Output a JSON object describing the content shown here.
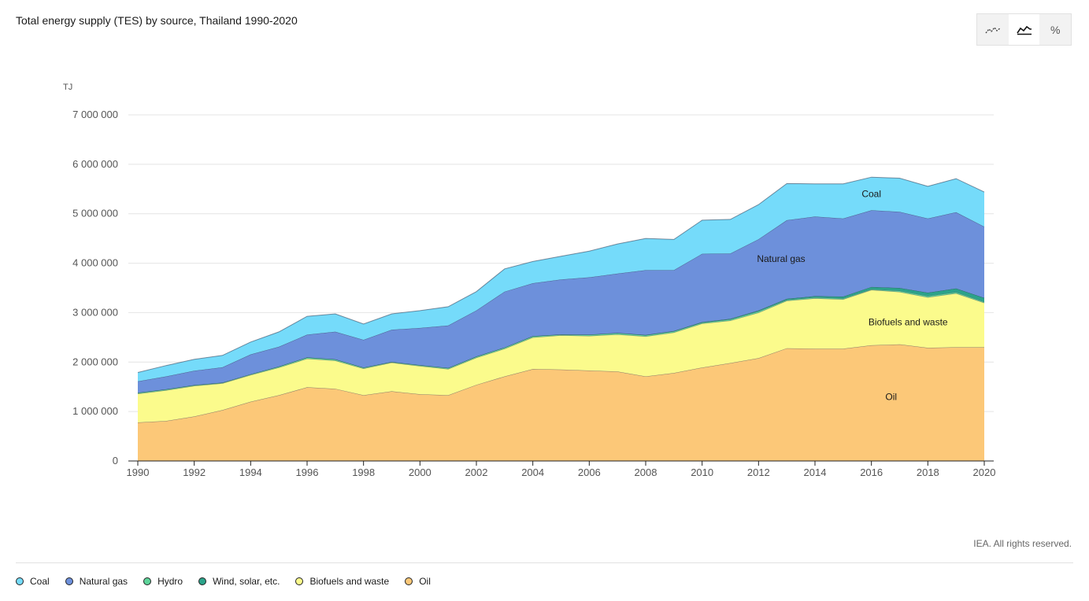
{
  "header": {
    "title": "Total energy supply (TES) by source, Thailand 1990-2020"
  },
  "view_toggle": {
    "buttons": [
      {
        "icon": "line-chart-icon",
        "glyph": "⟋",
        "active": false
      },
      {
        "icon": "area-chart-icon",
        "glyph": "◿",
        "active": true
      },
      {
        "icon": "percent-icon",
        "glyph": "%",
        "active": false
      }
    ]
  },
  "footer": {
    "credit": "IEA. All rights reserved."
  },
  "legend": [
    {
      "label": "Coal",
      "color": "#75dbfa"
    },
    {
      "label": "Natural gas",
      "color": "#6d90db"
    },
    {
      "label": "Hydro",
      "color": "#5ed49a"
    },
    {
      "label": "Wind, solar, etc.",
      "color": "#2ba38a"
    },
    {
      "label": "Biofuels and waste",
      "color": "#fbfb8c"
    },
    {
      "label": "Oil",
      "color": "#fcc878"
    }
  ],
  "chart_data": {
    "type": "area",
    "stacked": true,
    "ylabel": "TJ",
    "ylim": [
      0,
      7000000
    ],
    "yticks": [
      0,
      1000000,
      2000000,
      3000000,
      4000000,
      5000000,
      6000000,
      7000000
    ],
    "ytick_labels": [
      "0",
      "1 000 000",
      "2 000 000",
      "3 000 000",
      "4 000 000",
      "5 000 000",
      "6 000 000",
      "7 000 000"
    ],
    "xlim": [
      1990,
      2020
    ],
    "xticks": [
      1990,
      1992,
      1994,
      1996,
      1998,
      2000,
      2002,
      2004,
      2006,
      2008,
      2010,
      2012,
      2014,
      2016,
      2018,
      2020
    ],
    "x": [
      1990,
      1991,
      1992,
      1993,
      1994,
      1995,
      1996,
      1997,
      1998,
      1999,
      2000,
      2001,
      2002,
      2003,
      2004,
      2005,
      2006,
      2007,
      2008,
      2009,
      2010,
      2011,
      2012,
      2013,
      2014,
      2015,
      2016,
      2017,
      2018,
      2019,
      2020
    ],
    "series": [
      {
        "name": "Oil",
        "color": "#fcc878",
        "values": [
          780000,
          810000,
          900000,
          1030000,
          1200000,
          1330000,
          1490000,
          1460000,
          1330000,
          1410000,
          1350000,
          1330000,
          1540000,
          1710000,
          1860000,
          1850000,
          1830000,
          1810000,
          1710000,
          1780000,
          1890000,
          1980000,
          2080000,
          2280000,
          2270000,
          2270000,
          2340000,
          2360000,
          2290000,
          2300000,
          2300000
        ]
      },
      {
        "name": "Biofuels and waste",
        "color": "#fbfb8c",
        "values": [
          580000,
          620000,
          620000,
          540000,
          540000,
          560000,
          580000,
          570000,
          540000,
          580000,
          570000,
          530000,
          550000,
          560000,
          640000,
          690000,
          700000,
          750000,
          810000,
          820000,
          890000,
          860000,
          920000,
          960000,
          1020000,
          1000000,
          1120000,
          1060000,
          1020000,
          1090000,
          900000
        ]
      },
      {
        "name": "Hydro",
        "color": "#5ed49a",
        "values": [
          20000,
          20000,
          15000,
          15000,
          15000,
          20000,
          25000,
          25000,
          20000,
          15000,
          20000,
          20000,
          25000,
          25000,
          25000,
          20000,
          25000,
          30000,
          25000,
          25000,
          20000,
          25000,
          30000,
          20000,
          20000,
          20000,
          15000,
          25000,
          30000,
          25000,
          20000
        ]
      },
      {
        "name": "Wind, solar, etc.",
        "color": "#2ba38a",
        "values": [
          0,
          0,
          0,
          0,
          0,
          0,
          0,
          0,
          0,
          0,
          0,
          0,
          0,
          0,
          0,
          0,
          0,
          0,
          5000,
          5000,
          10000,
          10000,
          15000,
          20000,
          25000,
          35000,
          45000,
          55000,
          65000,
          75000,
          80000
        ]
      },
      {
        "name": "Natural gas",
        "color": "#6d90db",
        "values": [
          230000,
          260000,
          290000,
          310000,
          400000,
          400000,
          460000,
          560000,
          560000,
          650000,
          750000,
          860000,
          930000,
          1130000,
          1070000,
          1110000,
          1160000,
          1200000,
          1310000,
          1230000,
          1380000,
          1320000,
          1440000,
          1590000,
          1610000,
          1580000,
          1550000,
          1540000,
          1500000,
          1540000,
          1440000
        ]
      },
      {
        "name": "Coal",
        "color": "#75dbfa",
        "values": [
          180000,
          220000,
          230000,
          240000,
          250000,
          300000,
          370000,
          360000,
          320000,
          320000,
          350000,
          380000,
          380000,
          460000,
          440000,
          470000,
          530000,
          600000,
          640000,
          620000,
          680000,
          690000,
          700000,
          740000,
          660000,
          700000,
          670000,
          680000,
          650000,
          680000,
          700000
        ]
      }
    ],
    "annotations": [
      "Coal",
      "Natural gas",
      "Biofuels and waste",
      "Oil"
    ]
  }
}
